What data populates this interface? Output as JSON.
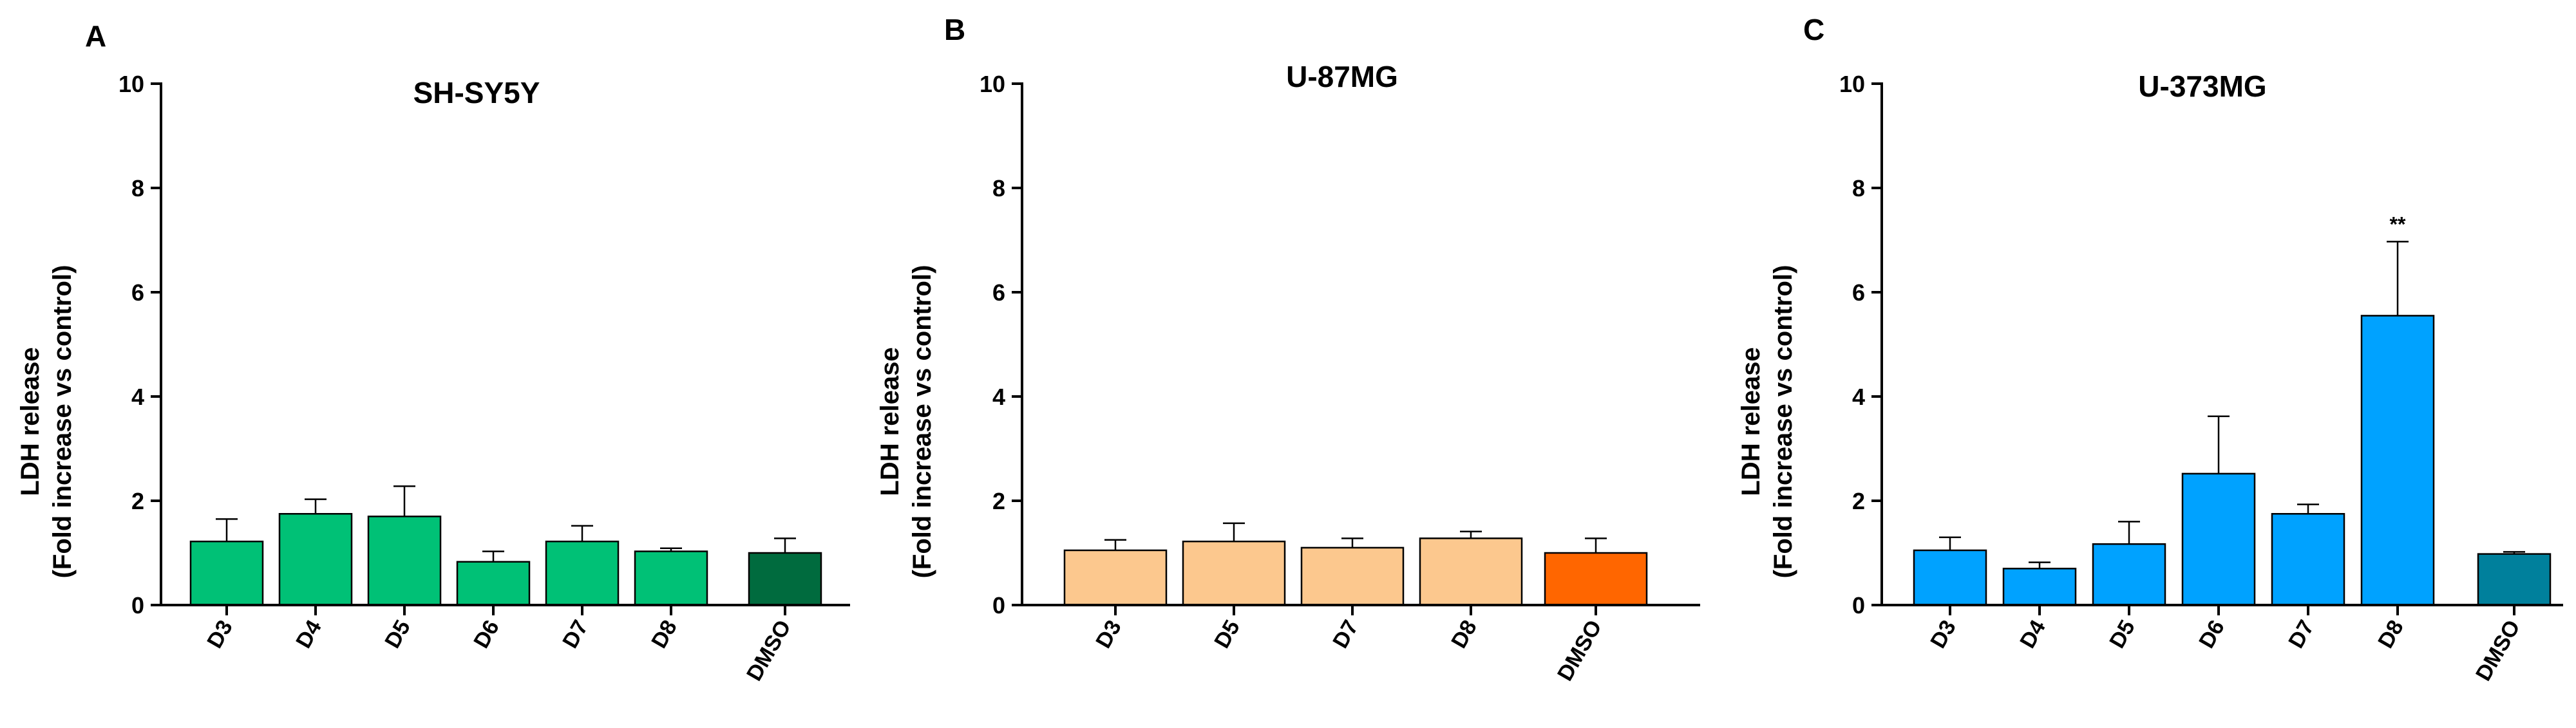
{
  "panels": [
    {
      "letter": "A",
      "title": "SH-SY5Y",
      "ylabel_line1": "LDH release",
      "ylabel_line2": "(Fold increase vs control)",
      "yticks": [
        "0",
        "2",
        "4",
        "6",
        "8",
        "10"
      ],
      "categories": [
        "D3",
        "D4",
        "D5",
        "D6",
        "D7",
        "D8",
        "DMSO"
      ]
    },
    {
      "letter": "B",
      "title": "U-87MG",
      "ylabel_line1": "LDH release",
      "ylabel_line2": "(Fold increase vs control)",
      "yticks": [
        "0",
        "2",
        "4",
        "6",
        "8",
        "10"
      ],
      "categories": [
        "D3",
        "D5",
        "D7",
        "D8",
        "DMSO"
      ]
    },
    {
      "letter": "C",
      "title": "U-373MG",
      "ylabel_line1": "LDH release",
      "ylabel_line2": "(Fold increase vs control)",
      "yticks": [
        "0",
        "2",
        "4",
        "6",
        "8",
        "10"
      ],
      "categories": [
        "D3",
        "D4",
        "D5",
        "D6",
        "D7",
        "D8",
        "DMSO"
      ]
    }
  ],
  "chart_data": [
    {
      "type": "bar",
      "title": "SH-SY5Y",
      "panel": "A",
      "ylabel": "LDH release (Fold increase vs control)",
      "ylim": [
        0,
        10
      ],
      "categories": [
        "D3",
        "D4",
        "D5",
        "D6",
        "D7",
        "D8",
        "DMSO"
      ],
      "values": [
        1.22,
        1.75,
        1.7,
        0.83,
        1.22,
        1.03,
        1.0
      ],
      "errors": [
        0.43,
        0.28,
        0.58,
        0.2,
        0.3,
        0.06,
        0.28
      ],
      "colors": [
        "#00c176",
        "#00c176",
        "#00c176",
        "#00c176",
        "#00c176",
        "#00c176",
        "#006b3e"
      ],
      "annotations": [
        "",
        "",
        "",
        "",
        "",
        "",
        ""
      ],
      "grid": false
    },
    {
      "type": "bar",
      "title": "U-87MG",
      "panel": "B",
      "ylabel": "LDH release (Fold increase vs control)",
      "ylim": [
        0,
        10
      ],
      "categories": [
        "D3",
        "D5",
        "D7",
        "D8",
        "DMSO"
      ],
      "values": [
        1.05,
        1.22,
        1.1,
        1.28,
        1.0
      ],
      "errors": [
        0.2,
        0.35,
        0.18,
        0.13,
        0.28
      ],
      "colors": [
        "#fcc88e",
        "#fcc88e",
        "#fcc88e",
        "#fcc88e",
        "#ff6600"
      ],
      "annotations": [
        "",
        "",
        "",
        "",
        ""
      ],
      "grid": false
    },
    {
      "type": "bar",
      "title": "U-373MG",
      "panel": "C",
      "ylabel": "LDH release (Fold increase vs control)",
      "ylim": [
        0,
        10
      ],
      "categories": [
        "D3",
        "D4",
        "D5",
        "D6",
        "D7",
        "D8",
        "DMSO"
      ],
      "values": [
        1.05,
        0.7,
        1.17,
        2.52,
        1.75,
        5.55,
        0.98
      ],
      "errors": [
        0.25,
        0.12,
        0.43,
        1.1,
        0.18,
        1.42,
        0.04
      ],
      "colors": [
        "#00a2ff",
        "#00a2ff",
        "#00a2ff",
        "#00a2ff",
        "#00a2ff",
        "#00a2ff",
        "#00809c"
      ],
      "annotations": [
        "",
        "",
        "",
        "",
        "",
        "**",
        ""
      ],
      "grid": false
    }
  ]
}
